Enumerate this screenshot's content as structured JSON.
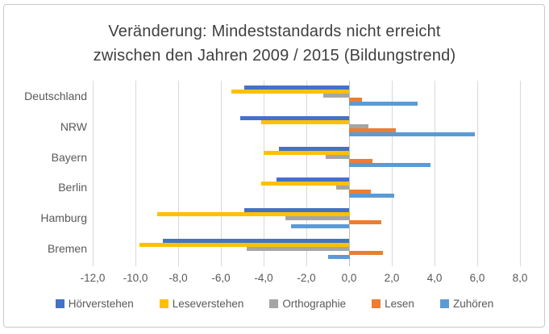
{
  "title": {
    "line1": "Veränderung: Mindeststandards nicht erreicht",
    "line2": "zwischen den Jahren 2009 / 2015 (Bildungstrend)"
  },
  "chart_data": {
    "type": "bar",
    "orientation": "horizontal",
    "title": "Veränderung: Mindeststandards nicht erreicht zwischen den Jahren 2009 / 2015 (Bildungstrend)",
    "categories": [
      "Deutschland",
      "NRW",
      "Bayern",
      "Berlin",
      "Hamburg",
      "Bremen"
    ],
    "series": [
      {
        "name": "Hörverstehen",
        "color": "#4472C4",
        "values": [
          -4.9,
          -5.1,
          -3.3,
          -3.4,
          -4.9,
          -8.7
        ]
      },
      {
        "name": "Leseverstehen",
        "color": "#FFC000",
        "values": [
          -5.5,
          -4.1,
          -4.0,
          -4.1,
          -9.0,
          -9.8
        ]
      },
      {
        "name": "Orthographie",
        "color": "#A5A5A5",
        "values": [
          -1.2,
          0.9,
          -1.1,
          -0.6,
          -3.0,
          -4.8
        ]
      },
      {
        "name": "Lesen",
        "color": "#ED7D31",
        "values": [
          0.6,
          2.2,
          1.1,
          1.0,
          1.5,
          1.6
        ]
      },
      {
        "name": "Zuhören",
        "color": "#5B9BD5",
        "values": [
          3.2,
          5.9,
          3.8,
          2.1,
          -2.7,
          -1.0
        ]
      }
    ],
    "xlim": [
      -12,
      8
    ],
    "x_tick_values": [
      -12,
      -10,
      -8,
      -6,
      -4,
      -2,
      0,
      2,
      4,
      6,
      8
    ],
    "x_tick_labels": [
      "-12,0",
      "-10,0",
      "-8,0",
      "-6,0",
      "-4,0",
      "-2,0",
      "0,0",
      "2,0",
      "4,0",
      "6,0",
      "8,0"
    ],
    "grid": true,
    "legend_position": "bottom"
  },
  "colors": {
    "grid": "#d9d9d9",
    "zero_axis": "#c0c0c0",
    "text": "#595959",
    "title_text": "#3f3f3f",
    "frame_border": "#c9c9c9"
  }
}
